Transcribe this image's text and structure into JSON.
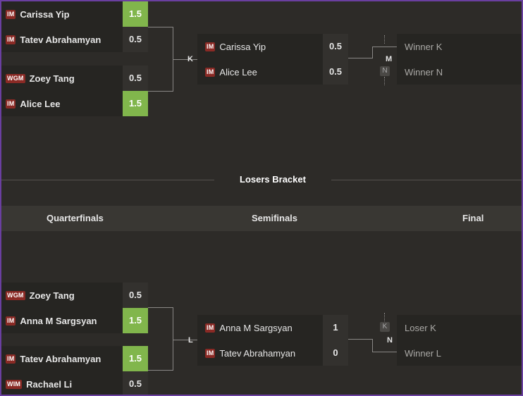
{
  "upper": {
    "qf1": {
      "p1": {
        "title": "IM",
        "name": "Carissa Yip",
        "score": "1.5"
      },
      "p2": {
        "title": "IM",
        "name": "Tatev Abrahamyan",
        "score": "0.5"
      }
    },
    "qf2": {
      "p1": {
        "title": "WGM",
        "name": "Zoey Tang",
        "score": "0.5"
      },
      "p2": {
        "title": "IM",
        "name": "Alice Lee",
        "score": "1.5"
      }
    },
    "qf_label": "K",
    "sf": {
      "p1": {
        "title": "IM",
        "name": "Carissa Yip",
        "score": "0.5"
      },
      "p2": {
        "title": "IM",
        "name": "Alice Lee",
        "score": "0.5"
      }
    },
    "sf_label": "M",
    "final": {
      "p1": "Winner K",
      "p2": "Winner N",
      "badge": "N"
    }
  },
  "losers": {
    "section_title": "Losers Bracket",
    "rounds": [
      "Quarterfinals",
      "Semifinals",
      "Final"
    ],
    "qf1": {
      "p1": {
        "title": "WGM",
        "name": "Zoey Tang",
        "score": "0.5"
      },
      "p2": {
        "title": "IM",
        "name": "Anna M Sargsyan",
        "score": "1.5"
      }
    },
    "qf2": {
      "p1": {
        "title": "IM",
        "name": "Tatev Abrahamyan",
        "score": "1.5"
      },
      "p2": {
        "title": "WIM",
        "name": "Rachael Li",
        "score": "0.5"
      }
    },
    "qf_label": "L",
    "sf": {
      "p1": {
        "title": "IM",
        "name": "Anna M Sargsyan",
        "score": "1"
      },
      "p2": {
        "title": "IM",
        "name": "Tatev Abrahamyan",
        "score": "0"
      }
    },
    "sf_label": "N",
    "final": {
      "p1": "Loser K",
      "p2": "Winner L",
      "badge": "K"
    }
  },
  "colors": {
    "win": "#81b64c",
    "title_badge": "#8a2a25",
    "frame": "#6a3fa0"
  }
}
